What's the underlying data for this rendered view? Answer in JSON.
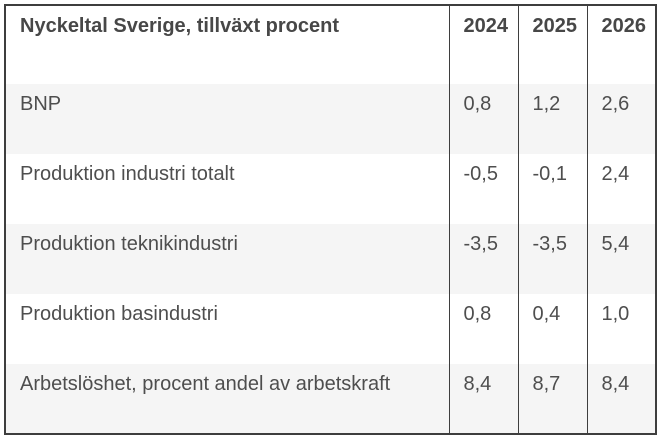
{
  "chart_data": {
    "type": "table",
    "title": "Nyckeltal Sverige, tillväxt procent",
    "columns": [
      "2024",
      "2025",
      "2026"
    ],
    "rows": [
      {
        "label": "BNP",
        "values": [
          "0,8",
          "1,2",
          "2,6"
        ]
      },
      {
        "label": "Produktion industri totalt",
        "values": [
          "-0,5",
          "-0,1",
          "2,4"
        ]
      },
      {
        "label": "Produktion teknikindustri",
        "values": [
          "-3,5",
          "-3,5",
          "5,4"
        ]
      },
      {
        "label": "Produktion basindustri",
        "values": [
          "0,8",
          "0,4",
          "1,0"
        ]
      },
      {
        "label": "Arbetslöshet, procent andel av arbetskraft",
        "values": [
          "8,4",
          "8,7",
          "8,4"
        ]
      }
    ],
    "layout": {
      "striped_rows": "odd rows shaded",
      "header_bold": true,
      "grid": "outer border and vertical column separators only"
    }
  },
  "colors": {
    "border": "#3e3e3e",
    "text": "#4e4e4e",
    "header_text": "#474747",
    "stripe": "#f5f5f5",
    "background": "#ffffff"
  }
}
